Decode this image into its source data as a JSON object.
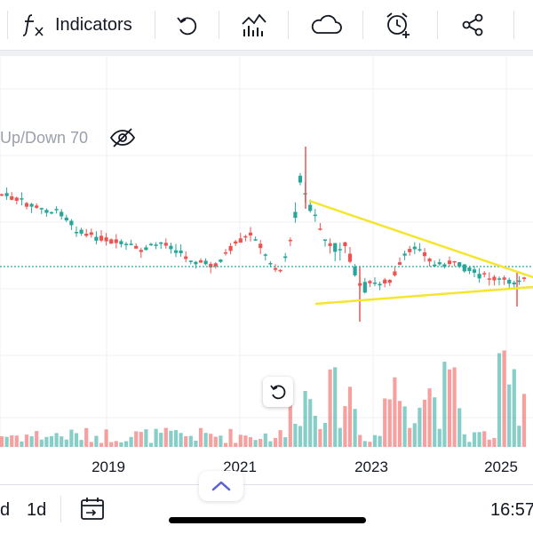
{
  "toolbar": {
    "indicators_label": "Indicators",
    "icons": [
      "fx-icon",
      "undo-icon",
      "chart-type-icon",
      "cloud-icon",
      "alert-clock-icon",
      "share-icon"
    ]
  },
  "legend": {
    "text": "Up/Down 70",
    "icon": "eye-off-icon"
  },
  "chart_data": {
    "type": "candlestick",
    "x_tick_labels": [
      "2019",
      "2021",
      "2023",
      "2025"
    ],
    "up_color": "#26a69a",
    "down_color": "#ef5350",
    "trendline_color": "#f5e62c",
    "trendlines": [
      {
        "name": "upper",
        "from": [
          "2022-01",
          "high"
        ],
        "to": [
          "2025-10",
          "converge"
        ]
      },
      {
        "name": "lower",
        "from": [
          "2022-01",
          "low"
        ],
        "to": [
          "2025-10",
          "converge"
        ]
      }
    ],
    "grid": true,
    "volume_pane": true
  },
  "bottom_bar": {
    "interval_1": "d",
    "interval_2": "1d",
    "time": "16:57"
  }
}
